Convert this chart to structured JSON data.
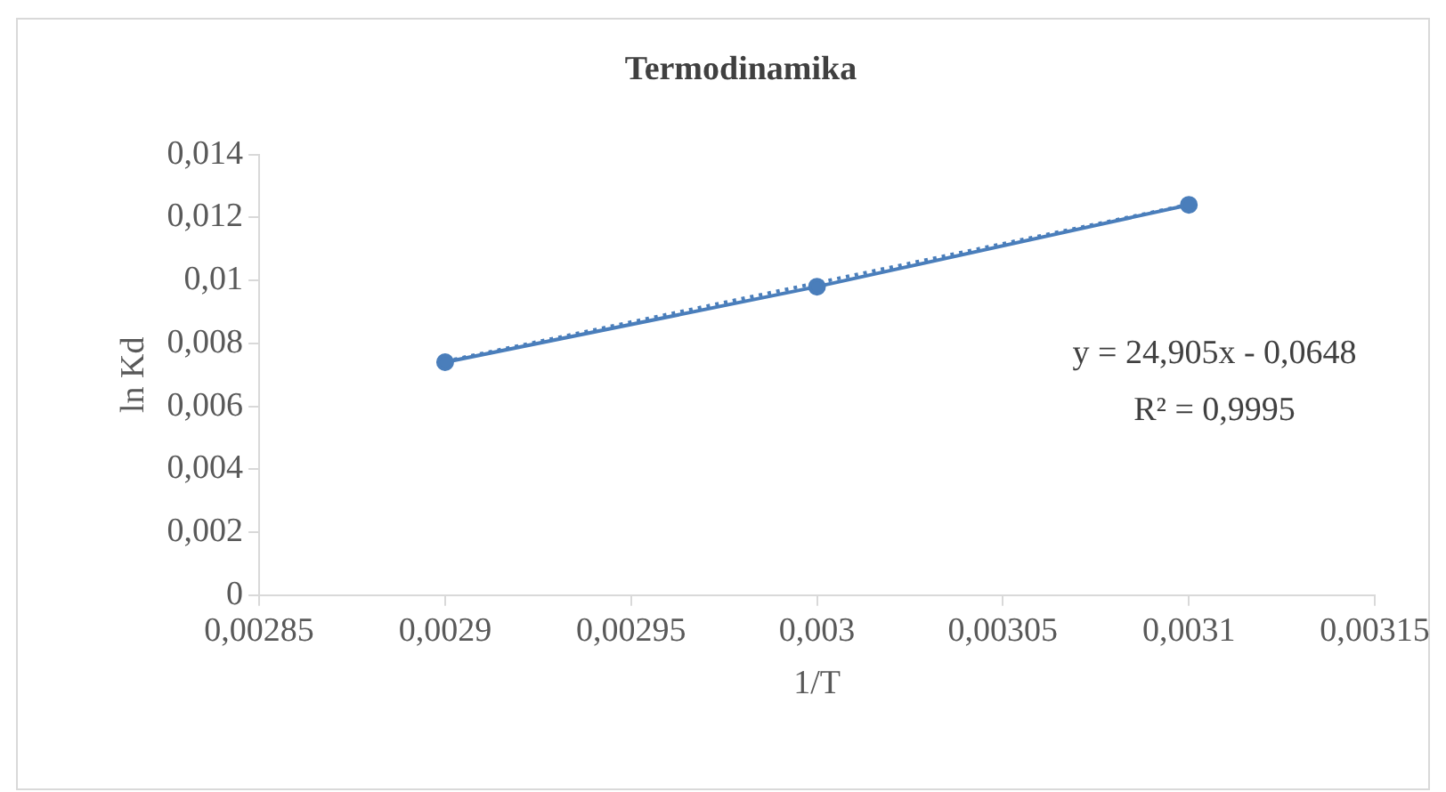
{
  "chart_data": {
    "type": "scatter",
    "title": "Termodinamika",
    "xlabel": "1/T",
    "ylabel": "ln Kd",
    "x": [
      0.0029,
      0.003,
      0.0031
    ],
    "series": [
      {
        "type": "line",
        "color": "#4a7ebb",
        "values": [
          0.0074,
          0.0098,
          0.0124
        ],
        "marker": "circle",
        "line_style": "solid"
      },
      {
        "type": "line",
        "color": "#4a7ebb",
        "x": [
          0.0029,
          0.0031
        ],
        "values": [
          0.00743,
          0.01241
        ],
        "marker": "none",
        "line_style": "dotted"
      }
    ],
    "xlim": [
      0.00285,
      0.00315
    ],
    "xticks": [
      {
        "value": 0.00285,
        "label": "0,00285"
      },
      {
        "value": 0.0029,
        "label": "0,0029"
      },
      {
        "value": 0.00295,
        "label": "0,00295"
      },
      {
        "value": 0.003,
        "label": "0,003"
      },
      {
        "value": 0.00305,
        "label": "0,00305"
      },
      {
        "value": 0.0031,
        "label": "0,0031"
      },
      {
        "value": 0.00315,
        "label": "0,00315"
      }
    ],
    "ylim": [
      0,
      0.014
    ],
    "yticks": [
      0,
      {
        "value": 0.002,
        "label": "0,002"
      },
      {
        "value": 0.004,
        "label": "0,004"
      },
      {
        "value": 0.006,
        "label": "0,006"
      },
      {
        "value": 0.008,
        "label": "0,008"
      },
      {
        "value": 0.01,
        "label": "0,01"
      },
      {
        "value": 0.012,
        "label": "0,012"
      },
      {
        "value": 0.014,
        "label": "0,014"
      }
    ],
    "grid": false,
    "legend": false,
    "annotations": [
      "y = 24,905x - 0,0648",
      "R² = 0,9995"
    ]
  }
}
